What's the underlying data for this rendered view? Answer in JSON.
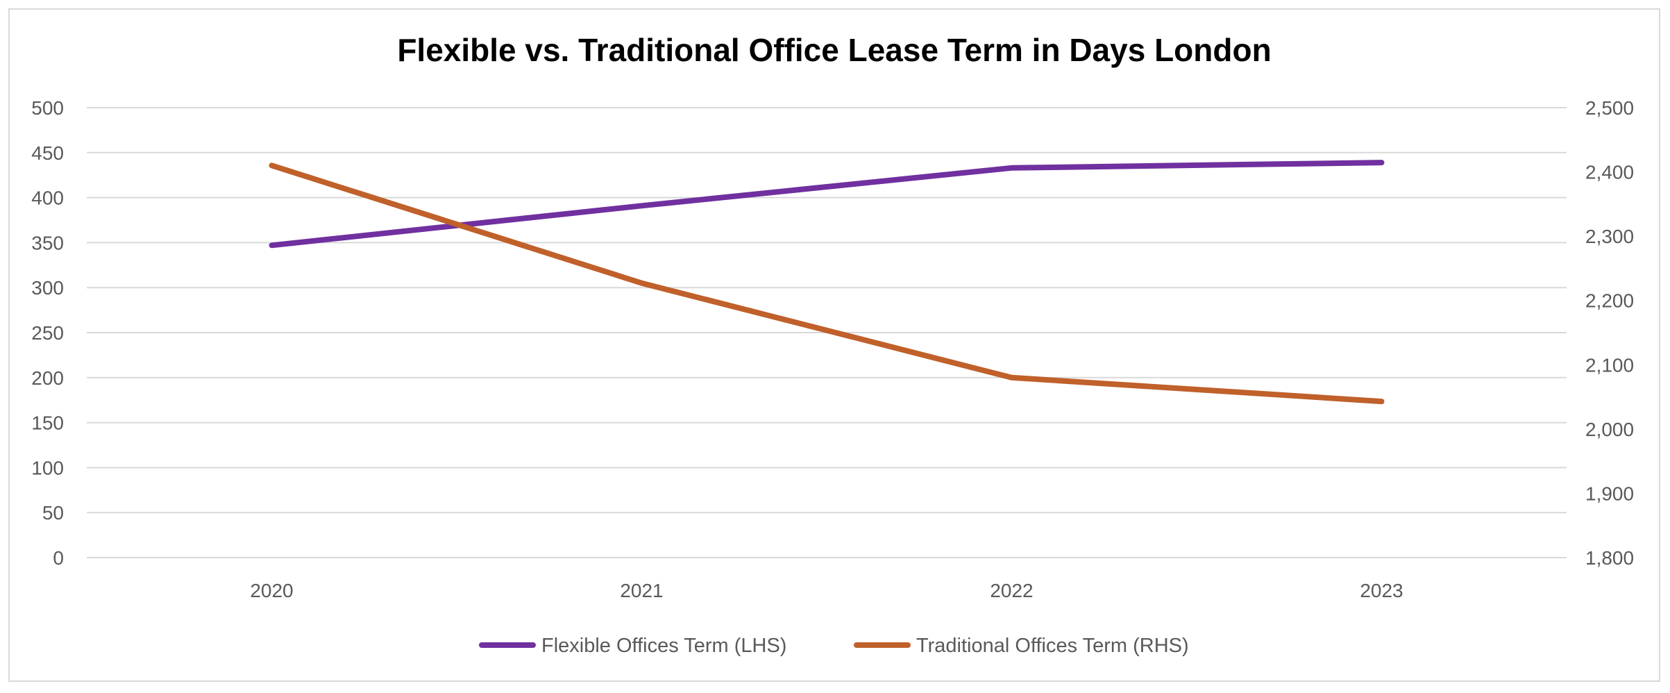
{
  "chart_data": {
    "type": "line",
    "title": "Flexible vs. Traditional Office Lease Term in Days London",
    "categories": [
      "2020",
      "2021",
      "2022",
      "2023"
    ],
    "series": [
      {
        "name": "Flexible Offices Term (LHS)",
        "axis": "left",
        "color": "#7030a0",
        "values": [
          347,
          391,
          433,
          439
        ]
      },
      {
        "name": "Traditional Offices Term (RHS)",
        "axis": "right",
        "color": "#c0602a",
        "values": [
          2410,
          2227,
          2080,
          2043
        ]
      }
    ],
    "y_left": {
      "ylim": [
        0,
        500
      ],
      "ticks": [
        "0",
        "50",
        "100",
        "150",
        "200",
        "250",
        "300",
        "350",
        "400",
        "450",
        "500"
      ]
    },
    "y_right": {
      "ylim": [
        1800,
        2500
      ],
      "ticks": [
        "1,800",
        "1,900",
        "2,000",
        "2,100",
        "2,200",
        "2,300",
        "2,400",
        "2,500"
      ]
    },
    "grid": true,
    "legend_position": "bottom"
  }
}
